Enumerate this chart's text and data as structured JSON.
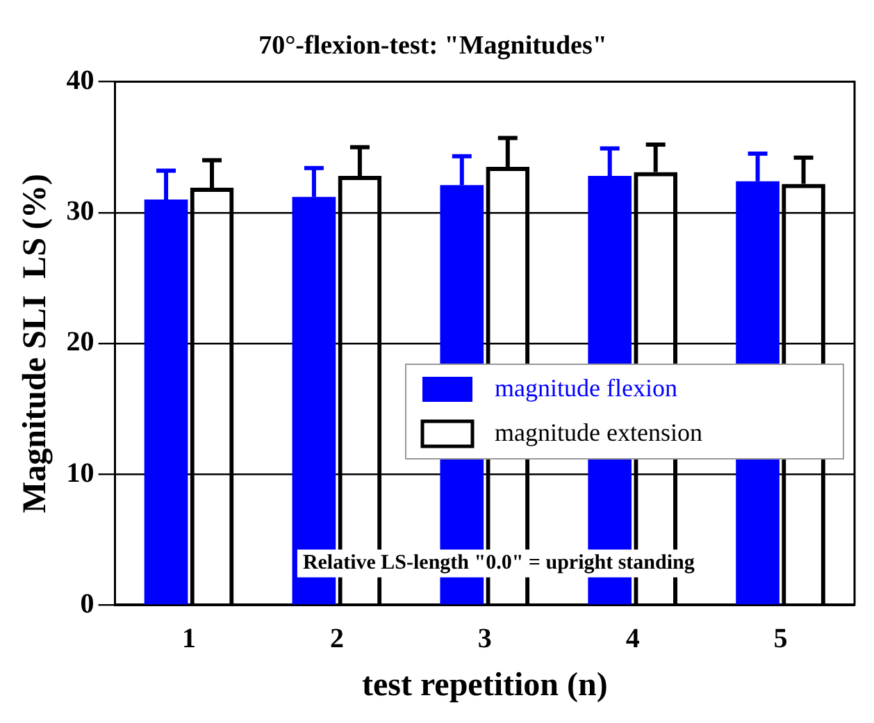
{
  "chart_data": {
    "type": "bar",
    "title": "70°-flexion-test: \"Magnitudes\"",
    "xlabel": "test repetition (n)",
    "ylabel": "Magnitude SLI  LS (%)",
    "categories": [
      "1",
      "2",
      "3",
      "4",
      "5"
    ],
    "series": [
      {
        "name": "magnitude flexion",
        "color": "#0000ff",
        "values": [
          31.0,
          31.2,
          32.1,
          32.8,
          32.4
        ],
        "errors": [
          2.2,
          2.2,
          2.2,
          2.1,
          2.1
        ]
      },
      {
        "name": "magnitude extension",
        "color": "#000000",
        "values": [
          31.9,
          32.8,
          33.5,
          33.1,
          32.2
        ],
        "errors": [
          2.1,
          2.2,
          2.2,
          2.1,
          2.0
        ]
      }
    ],
    "ylim": [
      0,
      40
    ],
    "yticks": [
      0,
      10,
      20,
      30,
      40
    ],
    "grid": "y",
    "legend": "right",
    "annotations": [
      "Relative LS-length \"0.0\" = upright standing"
    ]
  }
}
